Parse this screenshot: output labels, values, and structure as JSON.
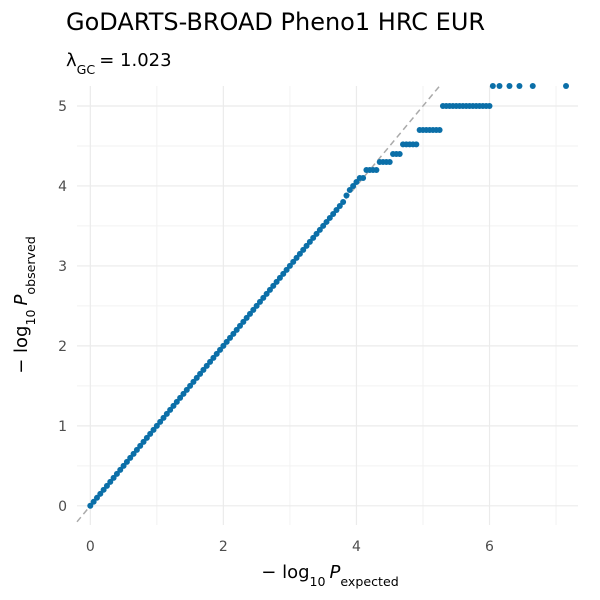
{
  "chart_data": {
    "type": "scatter",
    "title": "GoDARTS-BROAD Pheno1 HRC EUR",
    "subtitle": [
      "λ",
      "GC",
      "= 1.023"
    ],
    "x_label": [
      "− log",
      "10",
      "P",
      "expected"
    ],
    "y_label": [
      "− log",
      "10",
      "P",
      "observed"
    ],
    "x": [
      0,
      0.05,
      0.1,
      0.15,
      0.2,
      0.25,
      0.3,
      0.35,
      0.4,
      0.45,
      0.5,
      0.55,
      0.6,
      0.65,
      0.7,
      0.75,
      0.8,
      0.85,
      0.9,
      0.95,
      1,
      1.05,
      1.1,
      1.15,
      1.2,
      1.25,
      1.3,
      1.35,
      1.4,
      1.45,
      1.5,
      1.55,
      1.6,
      1.65,
      1.7,
      1.75,
      1.8,
      1.85,
      1.9,
      1.95,
      2,
      2.05,
      2.1,
      2.15,
      2.2,
      2.25,
      2.3,
      2.35,
      2.4,
      2.45,
      2.5,
      2.55,
      2.6,
      2.65,
      2.7,
      2.75,
      2.8,
      2.85,
      2.9,
      2.95,
      3,
      3.05,
      3.1,
      3.15,
      3.2,
      3.25,
      3.3,
      3.35,
      3.4,
      3.45,
      3.5,
      3.55,
      3.6,
      3.65,
      3.7,
      3.75,
      3.8,
      3.85,
      3.9,
      3.95,
      4,
      4.05,
      4.1,
      4.15,
      4.2,
      4.25,
      4.3,
      4.35,
      4.4,
      4.45,
      4.5,
      4.55,
      4.6,
      4.65,
      4.7,
      4.75,
      4.8,
      4.85,
      4.9,
      4.95,
      5,
      5.05,
      5.1,
      5.15,
      5.2,
      5.25,
      5.3,
      5.35,
      5.4,
      5.45,
      5.5,
      5.55,
      5.6,
      5.65,
      5.7,
      5.75,
      5.8,
      5.85,
      5.9,
      5.95,
      6,
      6.05,
      6.15,
      6.3,
      6.45,
      6.65,
      7.15
    ],
    "series": [
      {
        "color": "#0b6fa8",
        "values": [
          0,
          0.05,
          0.1,
          0.15,
          0.2,
          0.25,
          0.3,
          0.35,
          0.4,
          0.45,
          0.5,
          0.55,
          0.6,
          0.65,
          0.7,
          0.75,
          0.8,
          0.85,
          0.9,
          0.95,
          1,
          1.05,
          1.1,
          1.15,
          1.2,
          1.25,
          1.3,
          1.35,
          1.4,
          1.45,
          1.5,
          1.55,
          1.6,
          1.65,
          1.7,
          1.75,
          1.8,
          1.85,
          1.9,
          1.95,
          2,
          2.05,
          2.1,
          2.15,
          2.2,
          2.25,
          2.3,
          2.35,
          2.4,
          2.45,
          2.5,
          2.55,
          2.6,
          2.65,
          2.7,
          2.75,
          2.8,
          2.85,
          2.9,
          2.95,
          3,
          3.05,
          3.1,
          3.15,
          3.2,
          3.25,
          3.3,
          3.35,
          3.4,
          3.45,
          3.5,
          3.55,
          3.6,
          3.65,
          3.7,
          3.75,
          3.8,
          3.88,
          3.95,
          4,
          4.05,
          4.1,
          4.1,
          4.2,
          4.2,
          4.2,
          4.2,
          4.3,
          4.3,
          4.3,
          4.3,
          4.4,
          4.4,
          4.4,
          4.52,
          4.52,
          4.52,
          4.52,
          4.52,
          4.7,
          4.7,
          4.7,
          4.7,
          4.7,
          4.7,
          4.7,
          5,
          5,
          5,
          5,
          5,
          5,
          5,
          5,
          5,
          5,
          5,
          5,
          5,
          5,
          5,
          5.25,
          5.25,
          5.25,
          5.25,
          5.25,
          5.25
        ]
      }
    ],
    "xlim": [
      -0.2,
      7.33
    ],
    "ylim": [
      -0.24,
      5.25
    ],
    "xticks": [
      0,
      2,
      4,
      6
    ],
    "yticks": [
      0,
      1,
      2,
      3,
      4,
      5
    ],
    "grid": true
  }
}
